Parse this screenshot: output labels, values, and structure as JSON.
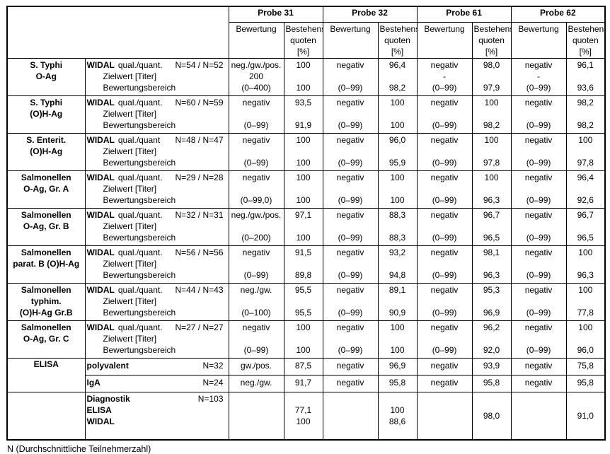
{
  "table": {
    "probes": [
      "Probe 31",
      "Probe 32",
      "Probe 61",
      "Probe 62"
    ],
    "col_subheaders": [
      "Bewertung",
      "Bestehens-\nquoten [%]"
    ],
    "common": {
      "method": "WIDAL",
      "line2": "Zielwert [Titer]",
      "line3": "Bewertungsbereich"
    },
    "widal_rows": [
      {
        "antigen": [
          "S. Typhi",
          "O-Ag"
        ],
        "qualifier": "qual./quant.",
        "n": "N=54 / N=52",
        "cells": [
          {
            "bew": [
              "neg./gw./pos.",
              "200",
              "(0–400)"
            ],
            "quote": [
              "100",
              "",
              "100"
            ]
          },
          {
            "bew": [
              "negativ",
              "",
              "(0–99)"
            ],
            "quote": [
              "96,4",
              "",
              "98,2"
            ]
          },
          {
            "bew": [
              "negativ",
              "-",
              "(0–99)"
            ],
            "quote": [
              "98,0",
              "",
              "97,9"
            ]
          },
          {
            "bew": [
              "negativ",
              "-",
              "(0–99)"
            ],
            "quote": [
              "96,1",
              "",
              "93,6"
            ]
          }
        ]
      },
      {
        "antigen": [
          "S. Typhi",
          "(O)H-Ag"
        ],
        "qualifier": "qual./quant.",
        "n": "N=60 / N=59",
        "cells": [
          {
            "bew": [
              "negativ",
              "",
              "(0–99)"
            ],
            "quote": [
              "93,5",
              "",
              "91,9"
            ]
          },
          {
            "bew": [
              "negativ",
              "",
              "(0–99)"
            ],
            "quote": [
              "100",
              "",
              "100"
            ]
          },
          {
            "bew": [
              "negativ",
              "",
              "(0–99)"
            ],
            "quote": [
              "100",
              "",
              "98,2"
            ]
          },
          {
            "bew": [
              "negativ",
              "",
              "(0–99)"
            ],
            "quote": [
              "98,2",
              "",
              "98,2"
            ]
          }
        ]
      },
      {
        "antigen": [
          "S. Enterit.",
          "(O)H-Ag"
        ],
        "qualifier": "qual./quant",
        "n": "N=48 / N=47",
        "cells": [
          {
            "bew": [
              "negativ",
              "",
              "(0–99)"
            ],
            "quote": [
              "100",
              "",
              "100"
            ]
          },
          {
            "bew": [
              "negativ",
              "",
              "(0–99)"
            ],
            "quote": [
              "96,0",
              "",
              "95,9"
            ]
          },
          {
            "bew": [
              "negativ",
              "",
              "(0–99)"
            ],
            "quote": [
              "100",
              "",
              "97,8"
            ]
          },
          {
            "bew": [
              "negativ",
              "",
              "(0–99)"
            ],
            "quote": [
              "100",
              "",
              "97,8"
            ]
          }
        ]
      },
      {
        "antigen": [
          "Salmonellen",
          "O-Ag, Gr. A"
        ],
        "qualifier": "qual./quant.",
        "n": "N=29 / N=28",
        "cells": [
          {
            "bew": [
              "negativ",
              "",
              "(0–99,0)"
            ],
            "quote": [
              "100",
              "",
              "100"
            ]
          },
          {
            "bew": [
              "negativ",
              "",
              "(0–99)"
            ],
            "quote": [
              "100",
              "",
              "100"
            ]
          },
          {
            "bew": [
              "negativ",
              "",
              "(0–99)"
            ],
            "quote": [
              "100",
              "",
              "96,3"
            ]
          },
          {
            "bew": [
              "negativ",
              "",
              "(0–99)"
            ],
            "quote": [
              "96,4",
              "",
              "92,6"
            ]
          }
        ]
      },
      {
        "antigen": [
          "Salmonellen",
          "O-Ag, Gr. B"
        ],
        "qualifier": "qual./quant.",
        "n": "N=32 / N=31",
        "cells": [
          {
            "bew": [
              "neg./gw./pos.",
              "",
              "(0–200)"
            ],
            "quote": [
              "97,1",
              "",
              "100"
            ]
          },
          {
            "bew": [
              "negativ",
              "",
              "(0–99)"
            ],
            "quote": [
              "88,3",
              "",
              "88,3"
            ]
          },
          {
            "bew": [
              "negativ",
              "",
              "(0–99)"
            ],
            "quote": [
              "96,7",
              "",
              "96,5"
            ]
          },
          {
            "bew": [
              "negativ",
              "",
              "(0–99)"
            ],
            "quote": [
              "96,7",
              "",
              "96,5"
            ]
          }
        ]
      },
      {
        "antigen": [
          "Salmonellen",
          "parat. B (O)H-Ag"
        ],
        "qualifier": "qual./quant.",
        "n": "N=56 / N=56",
        "cells": [
          {
            "bew": [
              "negativ",
              "",
              "(0–99)"
            ],
            "quote": [
              "91,5",
              "",
              "89,8"
            ]
          },
          {
            "bew": [
              "negativ",
              "",
              "(0–99)"
            ],
            "quote": [
              "93,2",
              "",
              "94,8"
            ]
          },
          {
            "bew": [
              "negativ",
              "",
              "(0–99)"
            ],
            "quote": [
              "98,1",
              "",
              "96,3"
            ]
          },
          {
            "bew": [
              "negativ",
              "",
              "(0–99)"
            ],
            "quote": [
              "100",
              "",
              "96,3"
            ]
          }
        ]
      },
      {
        "antigen": [
          "Salmonellen",
          "typhim.",
          "(O)H-Ag Gr.B"
        ],
        "qualifier": "qual./quant.",
        "n": "N=44 / N=43",
        "cells": [
          {
            "bew": [
              "neg./gw.",
              "",
              "(0–100)"
            ],
            "quote": [
              "95,5",
              "",
              "95,5"
            ]
          },
          {
            "bew": [
              "negativ",
              "",
              "(0–99)"
            ],
            "quote": [
              "89,1",
              "",
              "90,9"
            ]
          },
          {
            "bew": [
              "negativ",
              "",
              "(0–99)"
            ],
            "quote": [
              "95,3",
              "",
              "96,9"
            ]
          },
          {
            "bew": [
              "negativ",
              "",
              "(0–99)"
            ],
            "quote": [
              "100",
              "",
              "77,8"
            ]
          }
        ]
      },
      {
        "antigen": [
          "Salmonellen",
          "O-Ag, Gr. C"
        ],
        "qualifier": "qual./quant.",
        "n": "N=27 / N=27",
        "cells": [
          {
            "bew": [
              "negativ",
              "",
              "(0–99)"
            ],
            "quote": [
              "100",
              "",
              "100"
            ]
          },
          {
            "bew": [
              "negativ",
              "",
              "(0–99)"
            ],
            "quote": [
              "100",
              "",
              "100"
            ]
          },
          {
            "bew": [
              "negativ",
              "",
              "(0–99)"
            ],
            "quote": [
              "96,2",
              "",
              "92,0"
            ]
          },
          {
            "bew": [
              "negativ",
              "",
              "(0–99)"
            ],
            "quote": [
              "100",
              "",
              "96,0"
            ]
          }
        ]
      }
    ],
    "elisa_group": {
      "label": "ELISA",
      "rows": [
        {
          "name": "polyvalent",
          "n": "N=32",
          "cells": [
            {
              "bew": "gw./pos.",
              "quote": "87,5"
            },
            {
              "bew": "negativ",
              "quote": "96,9"
            },
            {
              "bew": "negativ",
              "quote": "93,9"
            },
            {
              "bew": "negativ",
              "quote": "75,8"
            }
          ]
        },
        {
          "name": "IgA",
          "n": "N=24",
          "cells": [
            {
              "bew": "neg./gw.",
              "quote": "91,7"
            },
            {
              "bew": "negativ",
              "quote": "95,8"
            },
            {
              "bew": "negativ",
              "quote": "95,8"
            },
            {
              "bew": "negativ",
              "quote": "95,8"
            }
          ]
        }
      ]
    },
    "summary_row": {
      "label_lines": [
        "Diagnostik",
        "ELISA",
        "WIDAL"
      ],
      "n": "N=103",
      "cells": [
        {
          "quote": [
            "",
            "77,1",
            "100"
          ]
        },
        {
          "quote": [
            "",
            "100",
            "88,6"
          ]
        },
        {
          "quote": [
            "98,0"
          ]
        },
        {
          "quote": [
            "91,0"
          ]
        }
      ]
    }
  },
  "footer": {
    "note": "N (Durchschnittliche Teilnehmerzahl)"
  }
}
